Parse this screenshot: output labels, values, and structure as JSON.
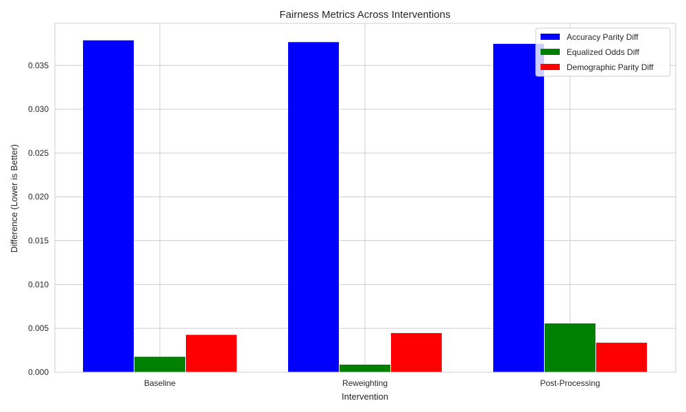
{
  "chart_data": {
    "type": "bar",
    "title": "Fairness Metrics Across Interventions",
    "xlabel": "Intervention",
    "ylabel": "Difference (Lower is Better)",
    "categories": [
      "Baseline",
      "Reweighting",
      "Post-Processing"
    ],
    "series": [
      {
        "name": "Accuracy Parity Diff",
        "color": "#0000ff",
        "values": [
          0.0379,
          0.0377,
          0.0375
        ]
      },
      {
        "name": "Equalized Odds Diff",
        "color": "#008000",
        "values": [
          0.0018,
          0.0009,
          0.0056
        ]
      },
      {
        "name": "Demographic Parity Diff",
        "color": "#ff0000",
        "values": [
          0.0043,
          0.0045,
          0.0034
        ]
      }
    ],
    "ylim": [
      0,
      0.0398
    ],
    "yticks": [
      0.0,
      0.005,
      0.01,
      0.015,
      0.02,
      0.025,
      0.03,
      0.035
    ],
    "ytick_labels": [
      "0.000",
      "0.005",
      "0.010",
      "0.015",
      "0.020",
      "0.025",
      "0.030",
      "0.035"
    ],
    "grid": true,
    "legend_position": "top-right"
  }
}
